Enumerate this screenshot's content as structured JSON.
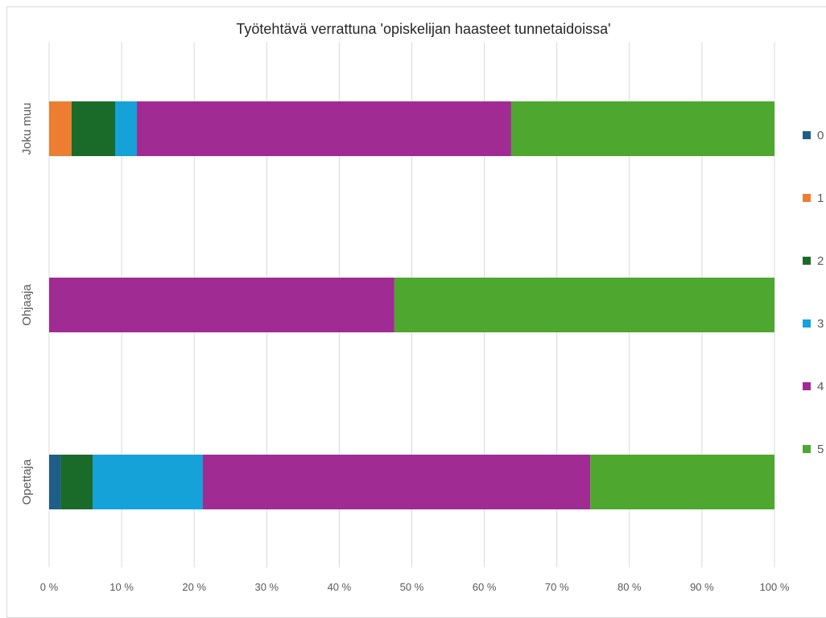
{
  "chart_data": {
    "type": "bar",
    "orientation": "horizontal",
    "stacking": "percent",
    "title": "Työtehtävä verrattuna 'opiskelijan haasteet tunnetaidoissa'",
    "categories": [
      "Opettaja",
      "Ohjaaja",
      "Joku muu"
    ],
    "series": [
      {
        "name": "0",
        "color": "#1f5f87",
        "values": [
          1.6,
          0,
          0
        ]
      },
      {
        "name": "1",
        "color": "#ed7d31",
        "values": [
          0,
          0,
          3.1
        ]
      },
      {
        "name": "2",
        "color": "#1a6b29",
        "values": [
          4.4,
          0,
          6.0
        ]
      },
      {
        "name": "3",
        "color": "#14a2d9",
        "values": [
          15.2,
          0,
          3.0
        ]
      },
      {
        "name": "4",
        "color": "#a02b93",
        "values": [
          53.4,
          47.6,
          51.6
        ]
      },
      {
        "name": "5",
        "color": "#4ea72e",
        "values": [
          25.4,
          52.4,
          36.3
        ]
      }
    ],
    "x_ticks": [
      "0 %",
      "10 %",
      "20 %",
      "30 %",
      "40 %",
      "50 %",
      "60 %",
      "70 %",
      "80 %",
      "90 %",
      "100 %"
    ],
    "xlim": [
      0,
      100
    ],
    "xlabel": "",
    "ylabel": "",
    "grid": true,
    "legend_position": "right"
  }
}
